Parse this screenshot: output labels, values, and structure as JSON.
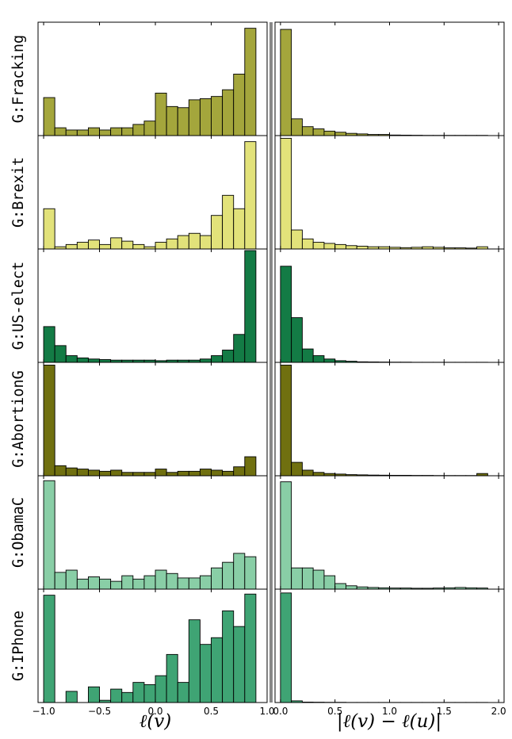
{
  "chart_data": {
    "type": "bar",
    "layout": "grid 6 rows x 2 columns of histograms",
    "row_labels": [
      "G:Fracking",
      "G:Brexit",
      "G:US-elect",
      "G:AbortionG",
      "G:ObamaC",
      "G:IPhone"
    ],
    "colors": [
      "#a4a63c",
      "#e2e27a",
      "#137b45",
      "#707010",
      "#89cea6",
      "#3fa474"
    ],
    "left": {
      "xlabel": "ℓ(v)",
      "xlim": [
        -1.05,
        1.0
      ],
      "ticks": [
        -1.0,
        -0.5,
        0.0,
        0.5,
        1.0
      ],
      "tick_labels": [
        "−1.0",
        "−0.5",
        "0.0",
        "0.5",
        "1.0"
      ],
      "bin_starts": [
        -1.0,
        -0.9,
        -0.8,
        -0.7,
        -0.6,
        -0.5,
        -0.4,
        -0.3,
        -0.2,
        -0.1,
        0.0,
        0.1,
        0.2,
        0.3,
        0.4,
        0.5,
        0.6,
        0.7,
        0.8
      ],
      "bin_width": 0.1
    },
    "right": {
      "xlabel": "|ℓ(v) − ℓ(u)|",
      "xlim": [
        -0.05,
        2.05
      ],
      "ticks": [
        0.0,
        0.5,
        1.0,
        1.5,
        2.0
      ],
      "tick_labels": [
        "0.0",
        "0.5",
        "1.0",
        "1.5",
        "2.0"
      ],
      "bin_starts": [
        0.0,
        0.1,
        0.2,
        0.3,
        0.4,
        0.5,
        0.6,
        0.7,
        0.8,
        0.9,
        1.0,
        1.1,
        1.2,
        1.3,
        1.4,
        1.5,
        1.6,
        1.7,
        1.8
      ],
      "bin_width": 0.1
    },
    "series": [
      {
        "name": "G:Fracking",
        "left_values": [
          0.34,
          0.07,
          0.05,
          0.05,
          0.07,
          0.05,
          0.07,
          0.07,
          0.1,
          0.13,
          0.38,
          0.26,
          0.25,
          0.32,
          0.33,
          0.35,
          0.41,
          0.55,
          0.96
        ],
        "right_values": [
          0.95,
          0.15,
          0.08,
          0.06,
          0.04,
          0.03,
          0.02,
          0.015,
          0.01,
          0.01,
          0.005,
          0.004,
          0.003,
          0.002,
          0.002,
          0.002,
          0.002,
          0.002,
          0.002
        ]
      },
      {
        "name": "G:Brexit",
        "left_values": [
          0.36,
          0.02,
          0.04,
          0.06,
          0.08,
          0.04,
          0.1,
          0.07,
          0.04,
          0.02,
          0.06,
          0.09,
          0.12,
          0.14,
          0.12,
          0.3,
          0.48,
          0.36,
          0.96
        ],
        "right_values": [
          0.99,
          0.17,
          0.09,
          0.06,
          0.05,
          0.04,
          0.03,
          0.025,
          0.02,
          0.02,
          0.015,
          0.012,
          0.015,
          0.02,
          0.015,
          0.01,
          0.01,
          0.008,
          0.02
        ]
      },
      {
        "name": "G:US-elect",
        "left_values": [
          0.32,
          0.15,
          0.06,
          0.04,
          0.03,
          0.025,
          0.02,
          0.02,
          0.02,
          0.02,
          0.015,
          0.02,
          0.02,
          0.02,
          0.03,
          0.06,
          0.11,
          0.25,
          1.0
        ],
        "right_values": [
          0.86,
          0.4,
          0.12,
          0.06,
          0.03,
          0.015,
          0.01,
          0.005,
          0.004,
          0.003,
          0.002,
          0.002,
          0.001,
          0.001,
          0.001,
          0.001,
          0.001,
          0.001,
          0.001
        ]
      },
      {
        "name": "G:AbortionG",
        "left_values": [
          0.99,
          0.09,
          0.07,
          0.06,
          0.05,
          0.04,
          0.05,
          0.03,
          0.03,
          0.03,
          0.06,
          0.03,
          0.04,
          0.04,
          0.06,
          0.05,
          0.04,
          0.08,
          0.17
        ],
        "right_values": [
          0.99,
          0.12,
          0.05,
          0.03,
          0.02,
          0.015,
          0.01,
          0.008,
          0.006,
          0.005,
          0.004,
          0.004,
          0.003,
          0.003,
          0.002,
          0.002,
          0.002,
          0.002,
          0.02
        ]
      },
      {
        "name": "G:ObamaC",
        "left_values": [
          0.97,
          0.15,
          0.17,
          0.09,
          0.11,
          0.09,
          0.07,
          0.12,
          0.09,
          0.12,
          0.17,
          0.14,
          0.1,
          0.1,
          0.12,
          0.19,
          0.24,
          0.32,
          0.29
        ],
        "right_values": [
          0.96,
          0.19,
          0.19,
          0.17,
          0.12,
          0.05,
          0.03,
          0.02,
          0.015,
          0.012,
          0.01,
          0.01,
          0.008,
          0.008,
          0.01,
          0.012,
          0.015,
          0.012,
          0.01
        ]
      },
      {
        "name": "G:IPhone",
        "left_values": [
          0.96,
          0.0,
          0.1,
          0.0,
          0.14,
          0.02,
          0.12,
          0.09,
          0.18,
          0.16,
          0.24,
          0.43,
          0.18,
          0.74,
          0.52,
          0.58,
          0.82,
          0.68,
          0.97
        ],
        "right_values": [
          0.98,
          0.015,
          0.004,
          0.003,
          0.002,
          0.002,
          0.001,
          0.001,
          0.001,
          0.001,
          0.001,
          0.001,
          0.001,
          0.001,
          0.001,
          0.001,
          0.001,
          0.001,
          0.001
        ]
      }
    ]
  }
}
